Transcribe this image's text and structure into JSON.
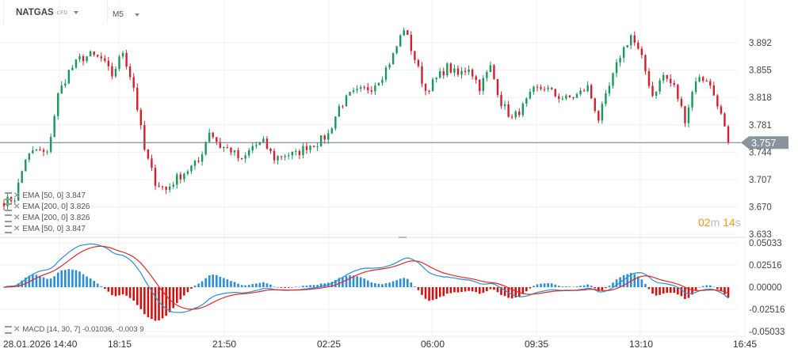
{
  "header": {
    "symbol": "NATGAS",
    "instrument_type": "CFD",
    "timeframe": "M5"
  },
  "colors": {
    "up": "#17995b",
    "down": "#d2202f",
    "macd_line": "#2a8fd6",
    "signal_line": "#e02a2a",
    "hist_pos": "#2a8fd6",
    "hist_neg": "#d0120f",
    "countdown": "#f59a23",
    "price_tag": "#8a949c"
  },
  "price_axis": {
    "labels": [
      "3.892",
      "3.855",
      "3.818",
      "3.781",
      "3.744",
      "3.707",
      "3.670",
      "3.633"
    ],
    "current_price": "3.757"
  },
  "macd_axis": {
    "labels": [
      "0.05033",
      "0.02516",
      "0.00000",
      "-0.02516",
      "-0.05033"
    ]
  },
  "time_axis": {
    "labels": [
      "28.01.2026  14:40",
      "18:15",
      "21:50",
      "02:25",
      "06:00",
      "09:35",
      "13:10",
      "16:45"
    ]
  },
  "indicators": [
    {
      "label": "EMA [50,  0]  3.847"
    },
    {
      "label": "EMA [200,  0]  3.826"
    },
    {
      "label": "EMA [200,  0]  3.826"
    },
    {
      "label": "EMA [50,  0]  3.847"
    }
  ],
  "macd_legend": "MACD [14, 30, 7] -0.01036,  -0.003  9",
  "countdown": {
    "minutes": "02",
    "m": "m",
    "seconds": "14",
    "s": "s"
  },
  "chart_data": {
    "type": "candlestick",
    "price_range": [
      3.633,
      3.912
    ],
    "close_path": [
      3.677,
      3.682,
      3.736,
      3.747,
      3.741,
      3.821,
      3.853,
      3.87,
      3.875,
      3.87,
      3.848,
      3.88,
      3.832,
      3.747,
      3.704,
      3.693,
      3.709,
      3.72,
      3.731,
      3.773,
      3.752,
      3.747,
      3.731,
      3.752,
      3.757,
      3.736,
      3.741,
      3.741,
      3.752,
      3.757,
      3.768,
      3.805,
      3.821,
      3.827,
      3.832,
      3.848,
      3.875,
      3.912,
      3.87,
      3.827,
      3.843,
      3.859,
      3.848,
      3.859,
      3.832,
      3.859,
      3.811,
      3.789,
      3.805,
      3.827,
      3.832,
      3.821,
      3.816,
      3.821,
      3.832,
      3.789,
      3.832,
      3.875,
      3.902,
      3.87,
      3.821,
      3.848,
      3.832,
      3.789,
      3.843,
      3.843,
      3.811,
      3.757
    ],
    "macd": {
      "fast": 14,
      "slow": 30,
      "signal": 7,
      "range": [
        -0.05033,
        0.05033
      ]
    }
  }
}
